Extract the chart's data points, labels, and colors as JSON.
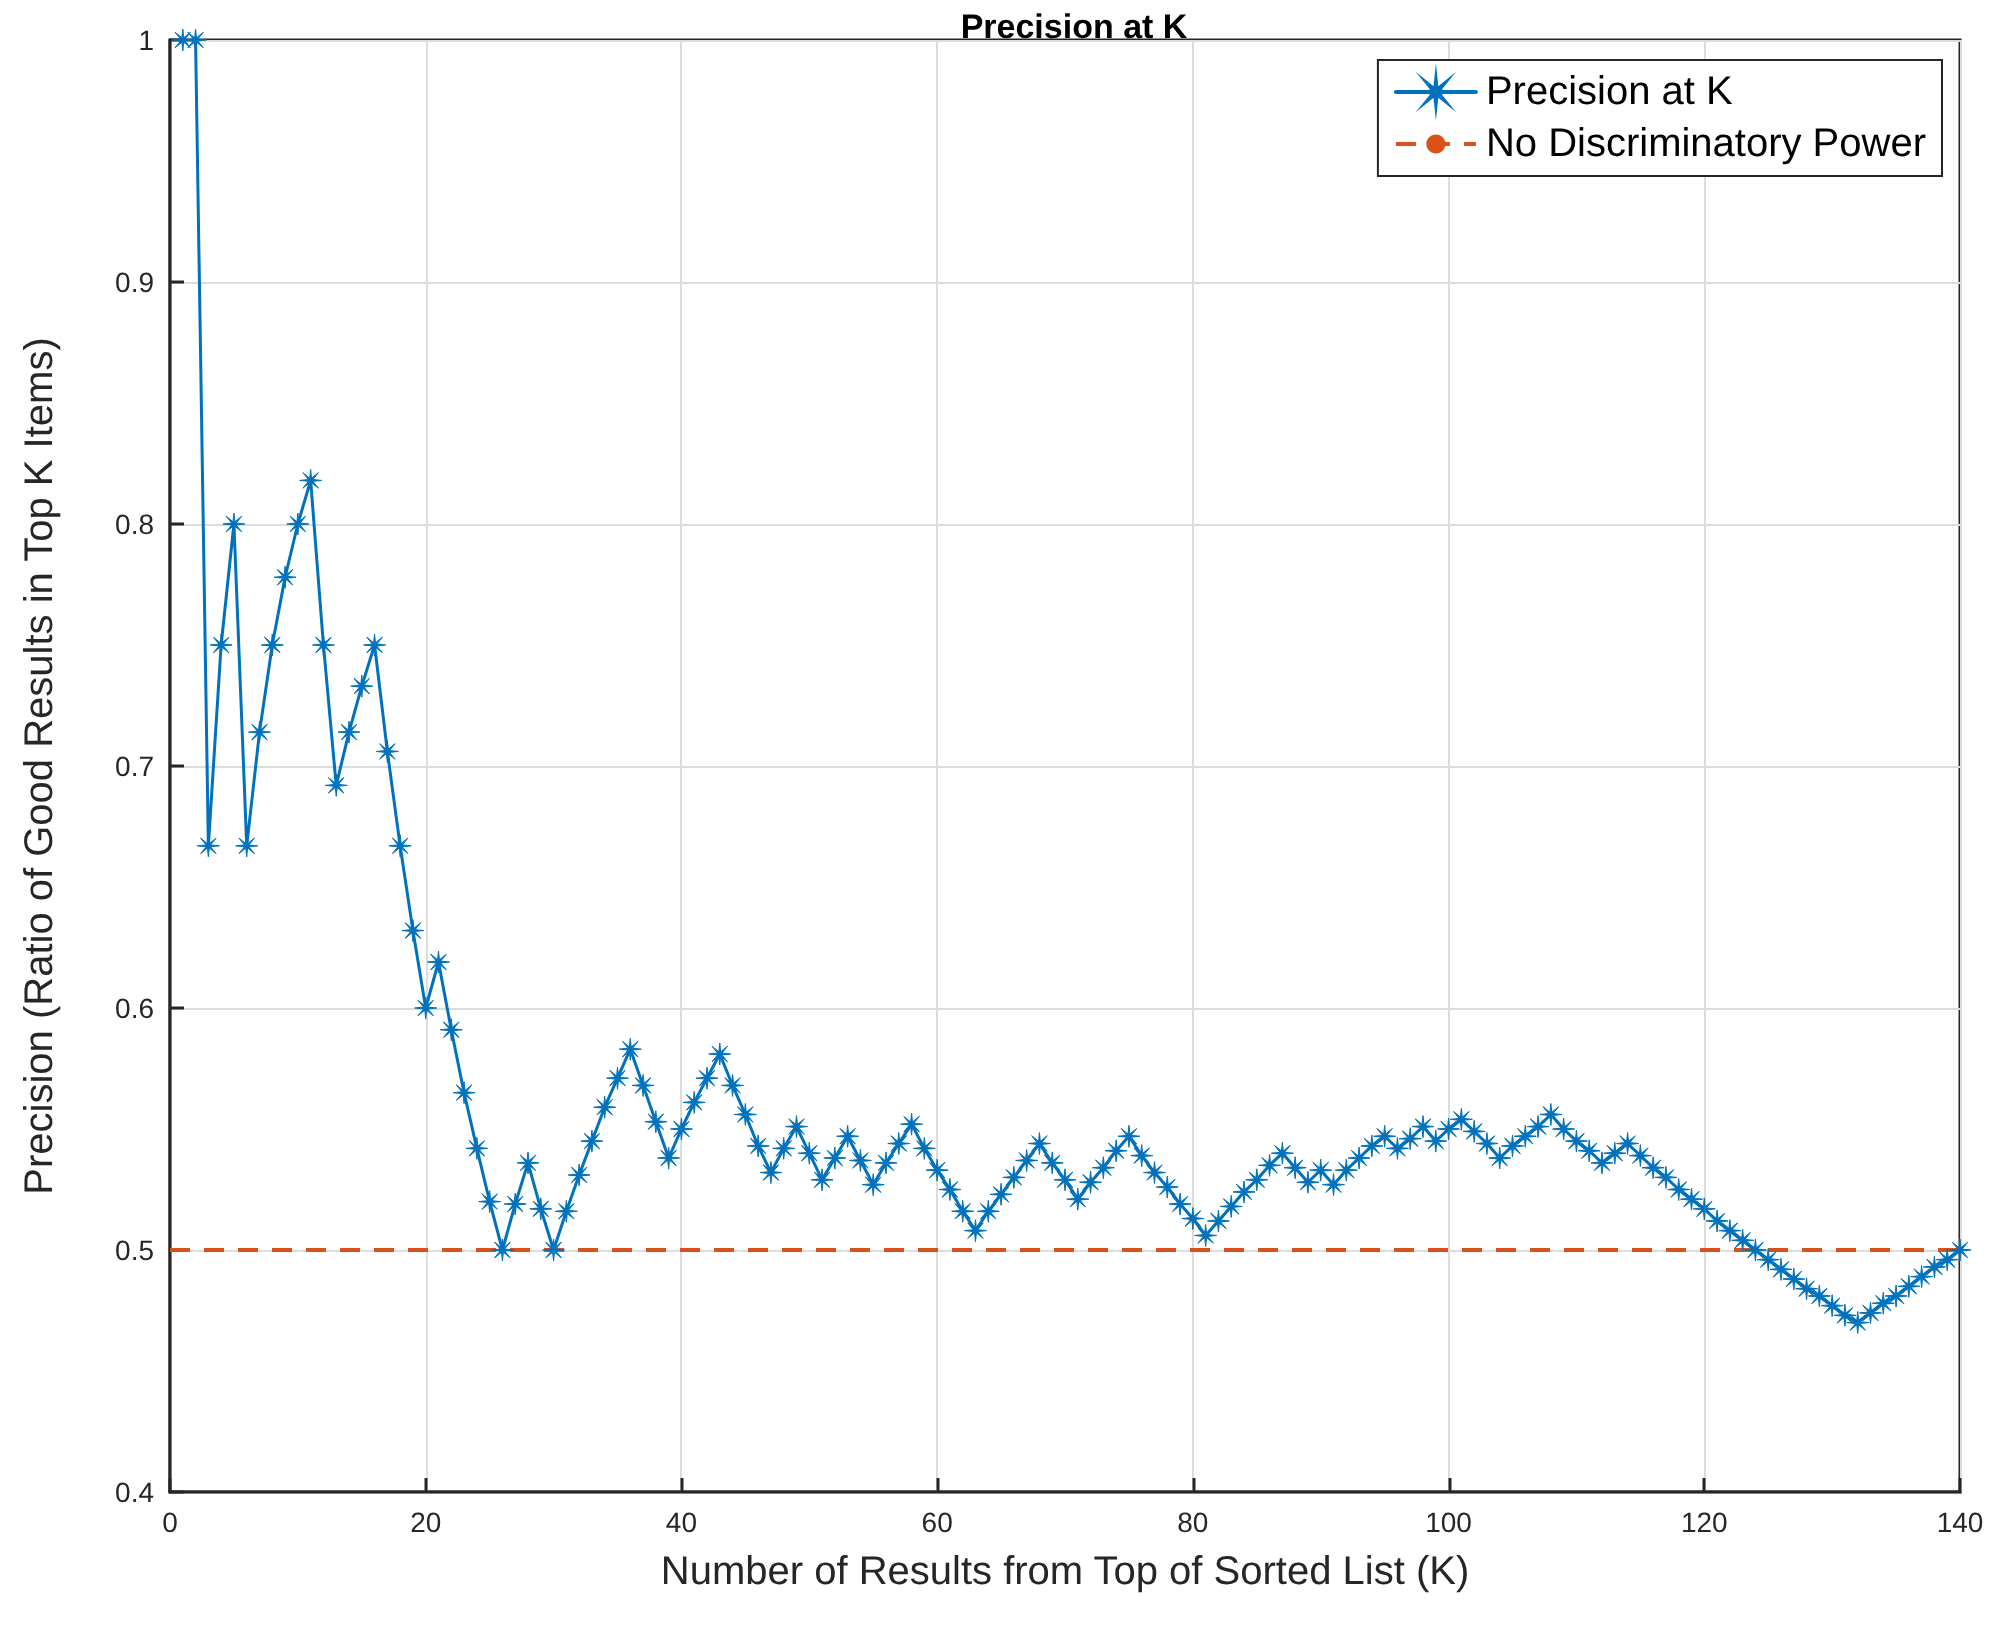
{
  "chart_data": {
    "type": "line",
    "title": "Precision at K",
    "xlabel": "Number of Results from Top of Sorted List (K)",
    "ylabel": "Precision (Ratio of Good Results in Top K Items)",
    "x": [
      1,
      2,
      3,
      4,
      5,
      6,
      7,
      8,
      9,
      10,
      11,
      12,
      13,
      14,
      15,
      16,
      17,
      18,
      19,
      20,
      21,
      22,
      23,
      24,
      25,
      26,
      27,
      28,
      29,
      30,
      31,
      32,
      33,
      34,
      35,
      36,
      37,
      38,
      39,
      40,
      41,
      42,
      43,
      44,
      45,
      46,
      47,
      48,
      49,
      50,
      51,
      52,
      53,
      54,
      55,
      56,
      57,
      58,
      59,
      60,
      61,
      62,
      63,
      64,
      65,
      66,
      67,
      68,
      69,
      70,
      71,
      72,
      73,
      74,
      75,
      76,
      77,
      78,
      79,
      80,
      81,
      82,
      83,
      84,
      85,
      86,
      87,
      88,
      89,
      90,
      91,
      92,
      93,
      94,
      95,
      96,
      97,
      98,
      99,
      100,
      101,
      102,
      103,
      104,
      105,
      106,
      107,
      108,
      109,
      110,
      111,
      112,
      113,
      114,
      115,
      116,
      117,
      118,
      119,
      120,
      121,
      122,
      123,
      124,
      125,
      126,
      127,
      128,
      129,
      130,
      131,
      132,
      133,
      134,
      135,
      136,
      137,
      138,
      139,
      140
    ],
    "series": [
      {
        "name": "Precision at K",
        "color": "#0072bd",
        "values": [
          1,
          1,
          0.667,
          0.75,
          0.8,
          0.667,
          0.714,
          0.75,
          0.778,
          0.8,
          0.818,
          0.75,
          0.692,
          0.714,
          0.733,
          0.75,
          0.706,
          0.667,
          0.632,
          0.6,
          0.619,
          0.591,
          0.565,
          0.542,
          0.52,
          0.5,
          0.519,
          0.536,
          0.517,
          0.5,
          0.516,
          0.531,
          0.545,
          0.559,
          0.571,
          0.583,
          0.568,
          0.553,
          0.538,
          0.55,
          0.561,
          0.571,
          0.581,
          0.568,
          0.556,
          0.543,
          0.532,
          0.542,
          0.551,
          0.54,
          0.529,
          0.538,
          0.547,
          0.537,
          0.527,
          0.536,
          0.544,
          0.552,
          0.542,
          0.533,
          0.525,
          0.516,
          0.508,
          0.516,
          0.523,
          0.53,
          0.537,
          0.544,
          0.536,
          0.529,
          0.521,
          0.528,
          0.534,
          0.541,
          0.547,
          0.539,
          0.532,
          0.526,
          0.519,
          0.513,
          0.506,
          0.512,
          0.518,
          0.524,
          0.529,
          0.535,
          0.54,
          0.534,
          0.528,
          0.533,
          0.527,
          0.533,
          0.538,
          0.543,
          0.547,
          0.542,
          0.546,
          0.551,
          0.545,
          0.55,
          0.554,
          0.549,
          0.544,
          0.538,
          0.543,
          0.547,
          0.551,
          0.556,
          0.55,
          0.545,
          0.541,
          0.536,
          0.54,
          0.544,
          0.539,
          0.534,
          0.53,
          0.525,
          0.521,
          0.517,
          0.512,
          0.508,
          0.504,
          0.5,
          0.496,
          0.492,
          0.488,
          0.484,
          0.481,
          0.477,
          0.473,
          0.47,
          0.474,
          0.478,
          0.481,
          0.485,
          0.489,
          0.493,
          0.496,
          0.5
        ]
      }
    ],
    "ref_lines": [
      {
        "axis": "y",
        "value": 0.5,
        "label": "No Discriminatory Power",
        "color": "#d95319",
        "line_style": "dashed"
      }
    ],
    "xlim": [
      0,
      140
    ],
    "xticks": [
      0,
      20,
      40,
      60,
      80,
      100,
      120,
      140
    ],
    "ylim": [
      0.4,
      1
    ],
    "yticks": [
      0.4,
      0.5,
      0.6,
      0.7,
      0.8,
      0.9,
      1
    ],
    "grid": true,
    "legend": "top right",
    "marker": "star",
    "line_style": "solid"
  }
}
